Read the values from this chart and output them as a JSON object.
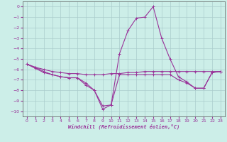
{
  "xlabel": "Windchill (Refroidissement éolien,°C)",
  "background_color": "#cceee8",
  "grid_color": "#aacccc",
  "line_color": "#993399",
  "xlim": [
    -0.5,
    23.5
  ],
  "ylim": [
    -10.5,
    0.5
  ],
  "yticks": [
    0,
    -1,
    -2,
    -3,
    -4,
    -5,
    -6,
    -7,
    -8,
    -9,
    -10
  ],
  "xticks": [
    0,
    1,
    2,
    3,
    4,
    5,
    6,
    7,
    8,
    9,
    10,
    11,
    12,
    13,
    14,
    15,
    16,
    17,
    18,
    19,
    20,
    21,
    22,
    23
  ],
  "line1_x": [
    0,
    1,
    2,
    3,
    4,
    5,
    6,
    7,
    8,
    9,
    10,
    11,
    12,
    13,
    14,
    15,
    16,
    17,
    18,
    19,
    20,
    21,
    22,
    23
  ],
  "line1_y": [
    -5.5,
    -5.8,
    -6.0,
    -6.2,
    -6.3,
    -6.4,
    -6.4,
    -6.5,
    -6.5,
    -6.5,
    -6.4,
    -6.4,
    -6.3,
    -6.3,
    -6.2,
    -6.2,
    -6.2,
    -6.2,
    -6.2,
    -6.2,
    -6.2,
    -6.2,
    -6.2,
    -6.2
  ],
  "line2_x": [
    0,
    1,
    2,
    3,
    4,
    5,
    6,
    7,
    8,
    9,
    10,
    11,
    12,
    13,
    14,
    15,
    16,
    17,
    18,
    19,
    20,
    21,
    22,
    23
  ],
  "line2_y": [
    -5.5,
    -5.8,
    -6.2,
    -6.5,
    -6.7,
    -6.8,
    -6.8,
    -7.5,
    -8.0,
    -9.5,
    -9.4,
    -4.5,
    -2.3,
    -1.1,
    -1.0,
    0.0,
    -3.0,
    -5.0,
    -6.7,
    -7.2,
    -7.8,
    -7.8,
    -6.3,
    -6.2
  ],
  "line3_x": [
    0,
    1,
    2,
    3,
    4,
    5,
    6,
    7,
    8,
    9,
    10,
    11,
    12,
    13,
    14,
    15,
    16,
    17,
    18,
    19,
    20,
    21,
    22,
    23
  ],
  "line3_y": [
    -5.5,
    -5.9,
    -6.3,
    -6.5,
    -6.7,
    -6.8,
    -6.8,
    -7.3,
    -8.0,
    -9.8,
    -9.4,
    -6.5,
    -6.5,
    -6.5,
    -6.5,
    -6.5,
    -6.5,
    -6.5,
    -7.0,
    -7.3,
    -7.8,
    -7.8,
    -6.3,
    -6.2
  ]
}
